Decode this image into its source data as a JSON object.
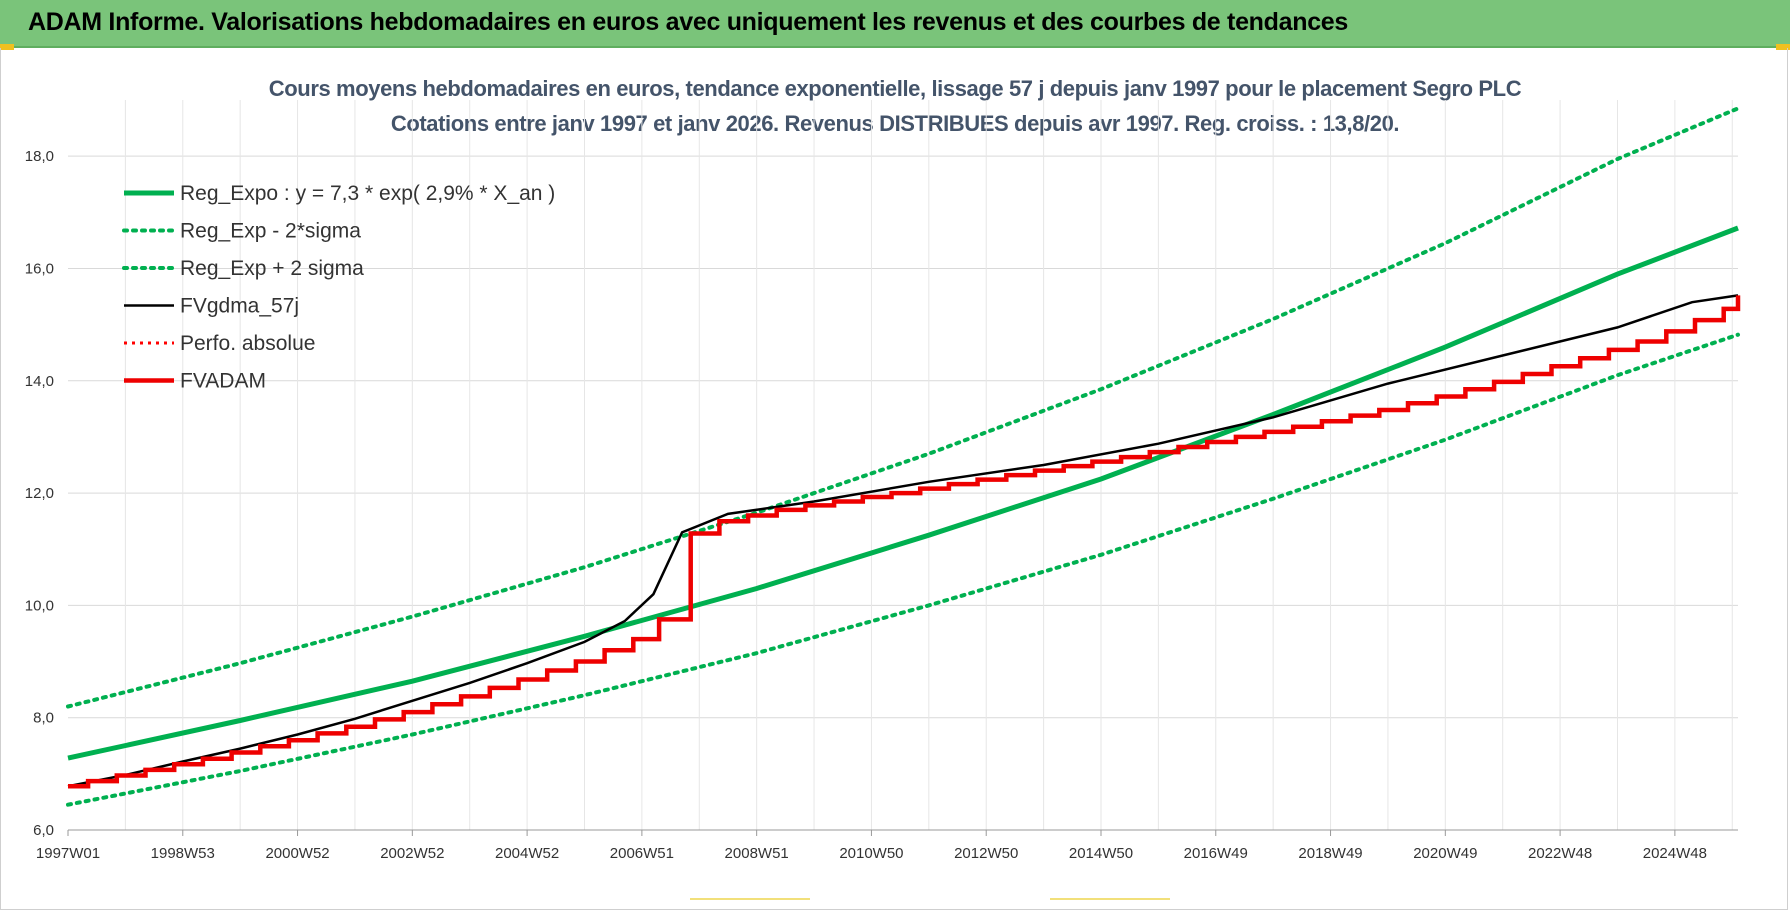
{
  "header": {
    "title": "ADAM Informe. Valorisations hebdomadaires en euros avec uniquement les revenus et des courbes de tendances"
  },
  "colors": {
    "header_bg": "#7ac47a",
    "trend": "#00b050",
    "fv_gdma": "#000000",
    "perfo": "#ff0000",
    "fvadam": "#ee0000"
  },
  "chart_data": {
    "type": "line",
    "title": "Cours moyens hebdomadaires en euros, tendance exponentielle, lissage 57 j depuis janv 1997 pour le placement Segro PLC",
    "subtitle": "Cotations entre janv 1997 et janv 2026. Revenus DISTRIBUES depuis avr 1997. Reg. croiss. : 13,8/20.",
    "ylim": [
      6.0,
      19.0
    ],
    "yticks": [
      "6,0",
      "8,0",
      "10,0",
      "12,0",
      "14,0",
      "16,0",
      "18,0"
    ],
    "ytick_values": [
      6,
      8,
      10,
      12,
      14,
      16,
      18
    ],
    "xlim": [
      1997.0,
      2026.1
    ],
    "xtick_labels": [
      "1997W01",
      "1998W53",
      "2000W52",
      "2002W52",
      "2004W52",
      "2006W51",
      "2008W51",
      "2010W50",
      "2012W50",
      "2014W50",
      "2016W49",
      "2018W49",
      "2020W49",
      "2022W48",
      "2024W48"
    ],
    "xtick_values": [
      1997.0,
      1999.0,
      2001.0,
      2003.0,
      2005.0,
      2007.0,
      2009.0,
      2011.0,
      2013.0,
      2015.0,
      2017.0,
      2019.0,
      2021.0,
      2023.0,
      2025.0
    ],
    "grid": true,
    "legend_position": "top-left",
    "series": [
      {
        "name": "Reg_Expo : y = 7,3 * exp( 2,9% *  X_an )",
        "style": "solid-green",
        "x": [
          1997.0,
          2000.0,
          2003.0,
          2006.0,
          2009.0,
          2012.0,
          2015.0,
          2018.0,
          2021.0,
          2024.0,
          2026.1
        ],
        "y": [
          7.28,
          7.95,
          8.65,
          9.45,
          10.3,
          11.25,
          12.25,
          13.4,
          14.6,
          15.9,
          16.72
        ]
      },
      {
        "name": "Reg_Exp - 2*sigma",
        "style": "dotted-green",
        "x": [
          1997.0,
          2000.0,
          2003.0,
          2006.0,
          2009.0,
          2012.0,
          2015.0,
          2018.0,
          2021.0,
          2024.0,
          2026.1
        ],
        "y": [
          6.45,
          7.05,
          7.7,
          8.4,
          9.15,
          10.0,
          10.9,
          11.9,
          12.95,
          14.1,
          14.82
        ]
      },
      {
        "name": "Reg_Exp + 2 sigma",
        "style": "dotted-green",
        "x": [
          1997.0,
          2000.0,
          2003.0,
          2006.0,
          2009.0,
          2012.0,
          2015.0,
          2018.0,
          2021.0,
          2024.0,
          2026.1
        ],
        "y": [
          8.2,
          8.97,
          9.8,
          10.68,
          11.65,
          12.7,
          13.85,
          15.1,
          16.45,
          17.95,
          18.85
        ]
      },
      {
        "name": "FVgdma_57j",
        "style": "solid-black",
        "x": [
          1997.0,
          1998.0,
          1999.0,
          2000.0,
          2001.0,
          2002.0,
          2003.0,
          2004.0,
          2005.0,
          2006.0,
          2006.7,
          2007.2,
          2007.7,
          2008.5,
          2010.0,
          2012.0,
          2014.0,
          2016.0,
          2018.0,
          2020.0,
          2022.0,
          2024.0,
          2025.3,
          2026.1
        ],
        "y": [
          6.78,
          6.98,
          7.22,
          7.45,
          7.7,
          7.98,
          8.3,
          8.62,
          8.97,
          9.35,
          9.72,
          10.2,
          11.3,
          11.63,
          11.85,
          12.2,
          12.5,
          12.88,
          13.35,
          13.95,
          14.45,
          14.95,
          15.4,
          15.52
        ]
      },
      {
        "name": "Perfo. absolue",
        "style": "dotted-red",
        "x": [],
        "y": []
      },
      {
        "name": "FVADAM",
        "style": "step-red",
        "x": [
          1997.0,
          1997.35,
          1997.85,
          1998.35,
          1998.85,
          1999.35,
          1999.85,
          2000.35,
          2000.85,
          2001.35,
          2001.85,
          2002.35,
          2002.85,
          2003.35,
          2003.85,
          2004.35,
          2004.85,
          2005.35,
          2005.85,
          2006.35,
          2006.85,
          2007.3,
          2007.85,
          2008.35,
          2008.85,
          2009.35,
          2009.85,
          2010.35,
          2010.85,
          2011.35,
          2011.85,
          2012.35,
          2012.85,
          2013.35,
          2013.85,
          2014.35,
          2014.85,
          2015.35,
          2015.85,
          2016.35,
          2016.85,
          2017.35,
          2017.85,
          2018.35,
          2018.85,
          2019.35,
          2019.85,
          2020.35,
          2020.85,
          2021.35,
          2021.85,
          2022.35,
          2022.85,
          2023.35,
          2023.85,
          2024.35,
          2024.85,
          2025.35,
          2025.85,
          2026.1
        ],
        "y": [
          6.78,
          6.87,
          6.97,
          7.07,
          7.17,
          7.27,
          7.38,
          7.49,
          7.6,
          7.72,
          7.84,
          7.97,
          8.1,
          8.24,
          8.38,
          8.53,
          8.68,
          8.84,
          9.0,
          9.2,
          9.4,
          9.75,
          11.28,
          11.5,
          11.6,
          11.7,
          11.78,
          11.85,
          11.93,
          12.0,
          12.08,
          12.16,
          12.24,
          12.32,
          12.4,
          12.48,
          12.56,
          12.64,
          12.73,
          12.82,
          12.91,
          13.0,
          13.09,
          13.18,
          13.28,
          13.38,
          13.48,
          13.6,
          13.72,
          13.85,
          13.98,
          14.12,
          14.26,
          14.4,
          14.55,
          14.7,
          14.88,
          15.08,
          15.28,
          15.52
        ]
      }
    ]
  }
}
